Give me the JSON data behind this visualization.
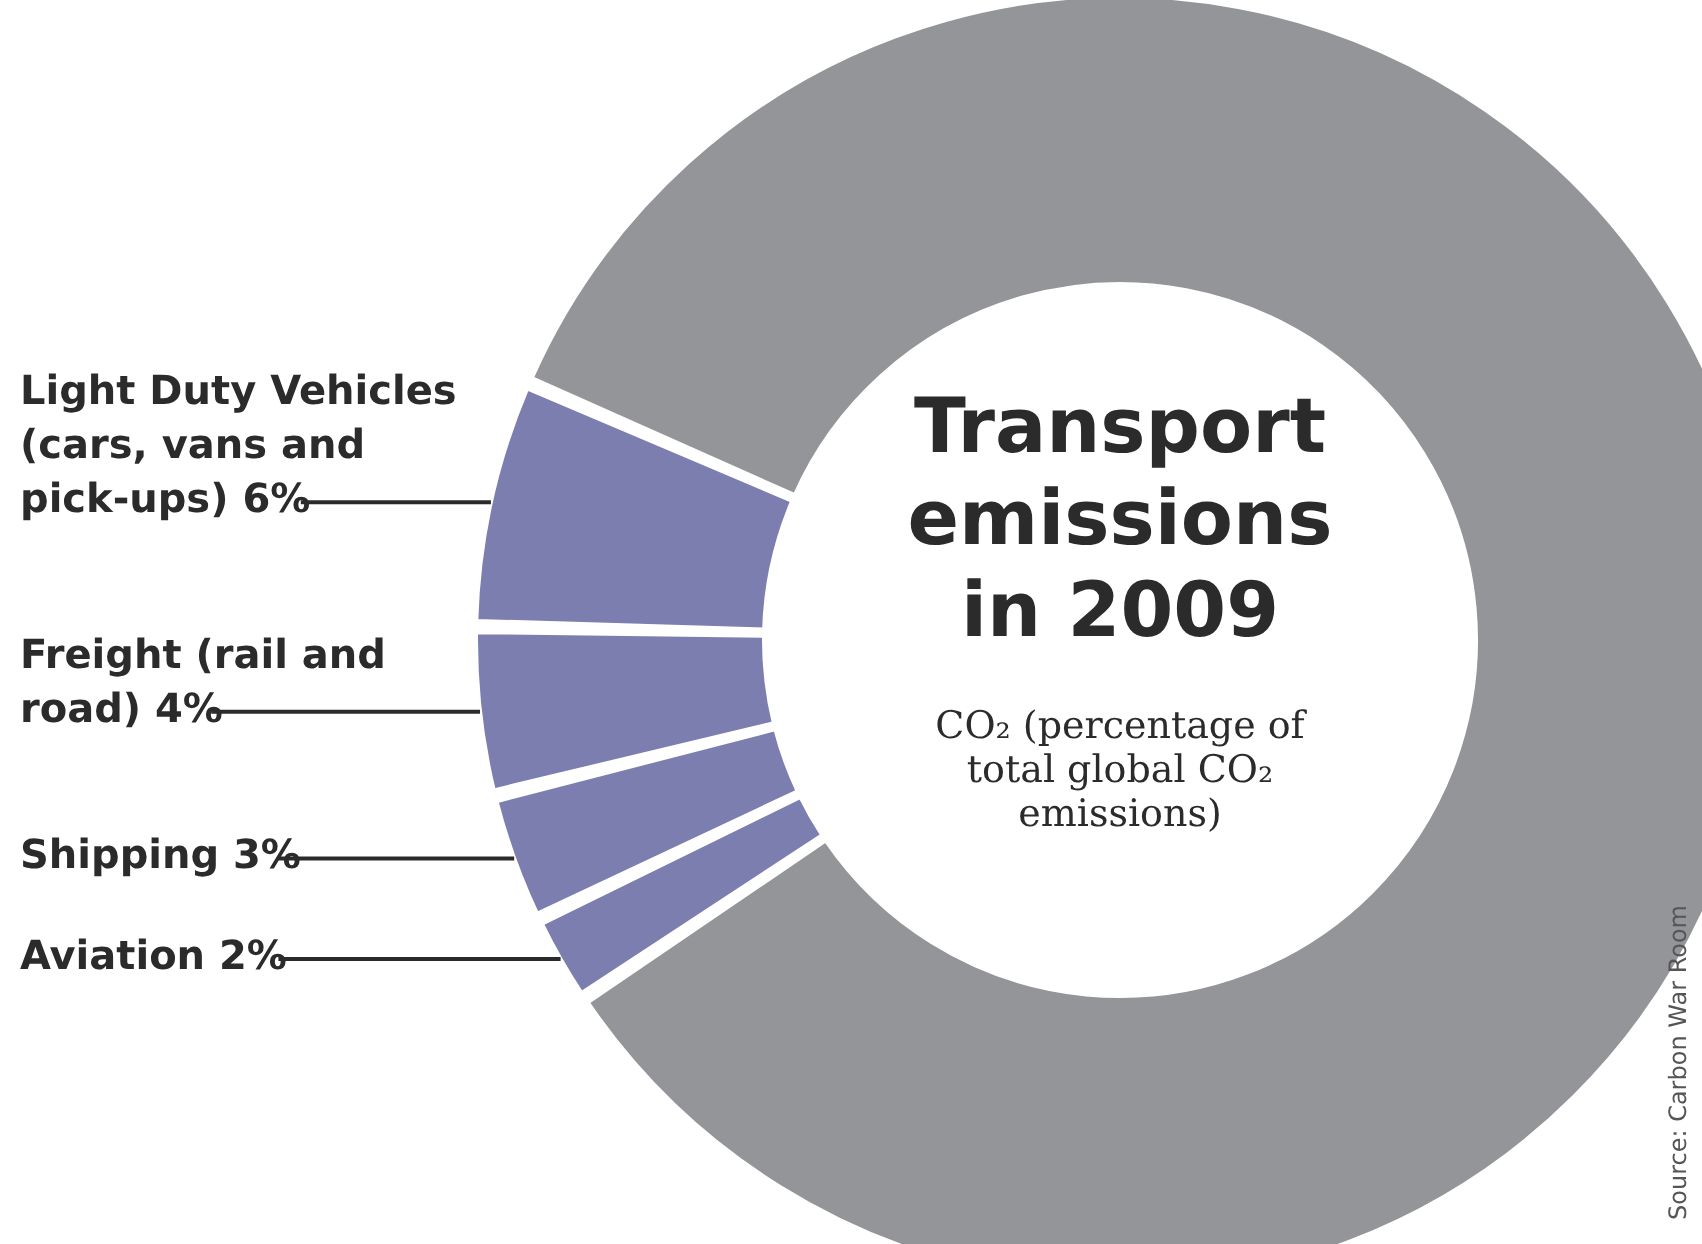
{
  "chart_data": {
    "type": "donut",
    "title": "Transport emissions in 2009",
    "subtitle": "CO₂ (percentage of total global CO₂ emissions)",
    "categories": [
      "Light Duty Vehicles (cars, vans and pick-ups)",
      "Freight (rail and road)",
      "Shipping",
      "Aviation",
      null
    ],
    "values": [
      6,
      4,
      3,
      2,
      85
    ],
    "colors": [
      "#7b7eae",
      "#7b7eae",
      "#7b7eae",
      "#7b7eae",
      "#939598"
    ],
    "value_labels": [
      "6%",
      "4%",
      "3%",
      "2%",
      null
    ],
    "annotations": [
      "Source: Carbon War Room"
    ]
  }
}
